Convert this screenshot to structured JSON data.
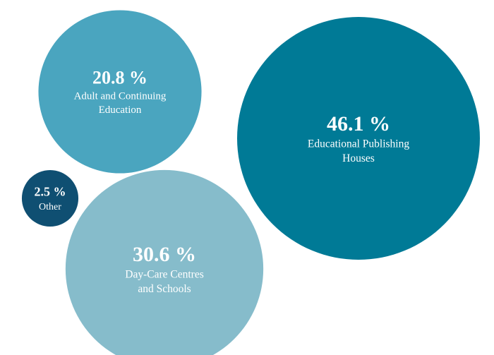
{
  "chart_data": {
    "type": "bubble",
    "title": "",
    "items": [
      {
        "value": 46.1,
        "value_label": "46.1 %",
        "label_lines": [
          "Educational Publishing",
          "Houses"
        ],
        "color": "#007a96"
      },
      {
        "value": 30.6,
        "value_label": "30.6 %",
        "label_lines": [
          "Day-Care Centres",
          "and Schools"
        ],
        "color": "#86bccb"
      },
      {
        "value": 20.8,
        "value_label": "20.8 %",
        "label_lines": [
          "Adult and Continuing",
          "Education"
        ],
        "color": "#4aa5bf"
      },
      {
        "value": 2.5,
        "value_label": "2.5 %",
        "label_lines": [
          "Other"
        ],
        "color": "#0f4f72"
      }
    ]
  }
}
